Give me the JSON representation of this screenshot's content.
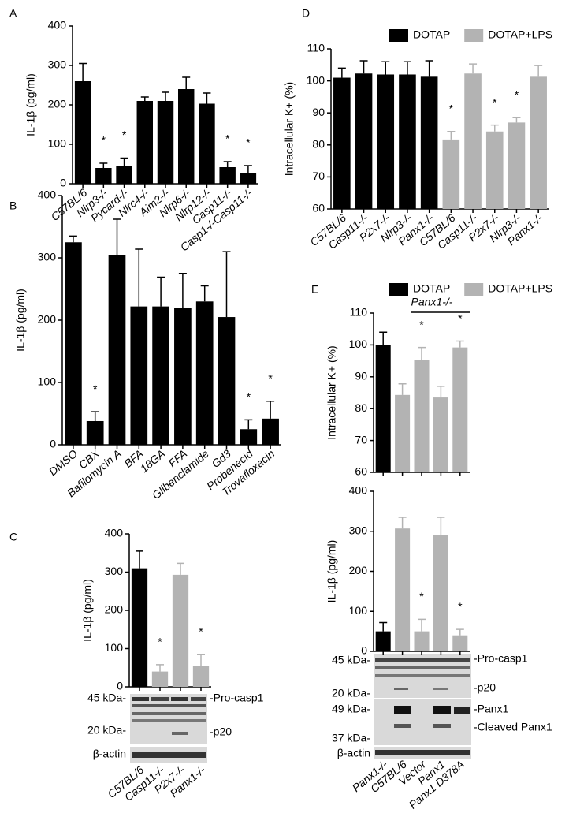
{
  "chart_data": [
    {
      "type": "bar",
      "panel": "A",
      "ylabel": "IL-1β (pg/ml)",
      "ylim": [
        0,
        400
      ],
      "yticks": [
        0,
        100,
        200,
        300,
        400
      ],
      "categories": [
        "C57BL/6",
        "Nlrp3-/-",
        "Pycard-/-",
        "Nlrc4-/-",
        "Aim2-/-",
        "Nlrp6-/-",
        "Nlrp12-/-",
        "Casp11-/-",
        "Casp1-/-Casp11-/-"
      ],
      "series": [
        {
          "color": "#000000",
          "values": [
            260,
            40,
            45,
            210,
            210,
            240,
            203,
            42,
            28
          ],
          "errors": [
            45,
            12,
            20,
            10,
            22,
            30,
            27,
            14,
            18
          ],
          "significance": [
            null,
            "*",
            "*",
            null,
            null,
            null,
            null,
            "*",
            "*"
          ]
        }
      ]
    },
    {
      "type": "bar",
      "panel": "B",
      "ylabel": "IL-1β (pg/ml)",
      "ylim": [
        0,
        400
      ],
      "yticks": [
        0,
        100,
        200,
        300,
        400
      ],
      "categories": [
        "DMSO",
        "CBX",
        "Bafilomycin A",
        "BFA",
        "18GA",
        "FFA",
        "Glibenclamide",
        "Gd3",
        "Probenecid",
        "Trovafloxacin"
      ],
      "series": [
        {
          "color": "#000000",
          "values": [
            325,
            38,
            305,
            222,
            222,
            220,
            230,
            205,
            25,
            42
          ],
          "errors": [
            10,
            15,
            57,
            92,
            47,
            55,
            25,
            105,
            15,
            28
          ],
          "significance": [
            null,
            "*",
            null,
            null,
            null,
            null,
            null,
            null,
            "*",
            "*"
          ]
        }
      ]
    },
    {
      "type": "bar",
      "panel": "C",
      "ylabel": "IL-1β (pg/ml)",
      "ylim": [
        0,
        400
      ],
      "yticks": [
        0,
        100,
        200,
        300,
        400
      ],
      "categories": [
        "C57BL/6",
        "Casp11-/-",
        "P2x7-/-",
        "Panx1-/-"
      ],
      "series": [
        {
          "color": "#000000",
          "values": [
            310,
            null,
            null,
            null
          ],
          "errors": [
            45,
            null,
            null,
            null
          ],
          "significance": [
            null,
            null,
            null,
            null
          ]
        },
        {
          "color": "#b3b3b3",
          "values": [
            null,
            40,
            293,
            55
          ],
          "errors": [
            null,
            18,
            30,
            30
          ],
          "significance": [
            null,
            "*",
            null,
            "*"
          ]
        }
      ],
      "blot": {
        "left": [
          "45 kDa-",
          "20 kDa-",
          "β-actin"
        ],
        "right": [
          "-Pro-casp1",
          "-p20"
        ]
      }
    },
    {
      "type": "bar",
      "panel": "D",
      "ylabel": "Intracellular K+ (%)",
      "ylim": [
        60,
        110
      ],
      "yticks": [
        60,
        70,
        80,
        90,
        100,
        110
      ],
      "categories": [
        "C57BL/6",
        "Casp11-/-",
        "P2x7-/-",
        "Nlrp3-/-",
        "Panx1-/-",
        "C57BL/6",
        "Casp11-/-",
        "P2x7-/-",
        "Nlrp3-/-",
        "Panx1-/-"
      ],
      "series": [
        {
          "name": "DOTAP",
          "color": "#000000",
          "values": [
            101,
            102.3,
            102,
            102,
            101.3,
            null,
            null,
            null,
            null,
            null
          ],
          "errors": [
            3,
            4,
            4,
            4,
            5,
            null,
            null,
            null,
            null,
            null
          ],
          "significance": [
            null,
            null,
            null,
            null,
            null,
            null,
            null,
            null,
            null,
            null
          ]
        },
        {
          "name": "DOTAP+LPS",
          "color": "#b3b3b3",
          "values": [
            null,
            null,
            null,
            null,
            null,
            81.7,
            102.3,
            84.2,
            87,
            101.3
          ],
          "errors": [
            null,
            null,
            null,
            null,
            null,
            2.5,
            3,
            2,
            1.5,
            3.5
          ],
          "significance": [
            null,
            null,
            null,
            null,
            null,
            "*",
            null,
            "*",
            "*",
            null
          ]
        }
      ]
    },
    {
      "type": "bar",
      "panel": "E",
      "ylabel": "Intracellular K+ (%)",
      "ylim": [
        60,
        110
      ],
      "yticks": [
        60,
        70,
        80,
        90,
        100,
        110
      ],
      "group_label": "Panx1-/-",
      "series": [
        {
          "name": "DOTAP",
          "color": "#000000",
          "values": [
            100,
            null,
            null,
            null,
            null
          ],
          "errors": [
            4,
            null,
            null,
            null,
            null
          ],
          "significance": [
            null,
            null,
            null,
            null,
            null
          ]
        },
        {
          "name": "DOTAP+LPS",
          "color": "#b3b3b3",
          "values": [
            null,
            84.3,
            95.2,
            83.5,
            99.2
          ],
          "errors": [
            null,
            3.5,
            4,
            3.5,
            2
          ],
          "significance": [
            null,
            null,
            "*",
            null,
            "*"
          ]
        }
      ]
    },
    {
      "type": "bar",
      "ylabel": "IL-1β (pg/ml)",
      "ylim": [
        0,
        400
      ],
      "yticks": [
        0,
        100,
        200,
        300,
        400
      ],
      "categories": [
        "Panx1-/-",
        "C57BL/6",
        "Vector",
        "Panx1",
        "Panx1 D378A"
      ],
      "series": [
        {
          "color": "#000000",
          "values": [
            50,
            null,
            null,
            null,
            null
          ],
          "errors": [
            22,
            null,
            null,
            null,
            null
          ],
          "significance": [
            null,
            null,
            null,
            null,
            null
          ]
        },
        {
          "color": "#b3b3b3",
          "values": [
            null,
            307,
            50,
            290,
            40
          ],
          "errors": [
            null,
            28,
            30,
            45,
            15
          ],
          "significance": [
            null,
            null,
            "*",
            null,
            "*"
          ]
        }
      ],
      "blot": {
        "left": [
          "45 kDa-",
          "20 kDa-",
          "49 kDa-",
          "37 kDa-",
          "β-actin"
        ],
        "right": [
          "-Pro-casp1",
          "-p20",
          "-Panx1",
          "-Cleaved Panx1"
        ]
      }
    }
  ]
}
